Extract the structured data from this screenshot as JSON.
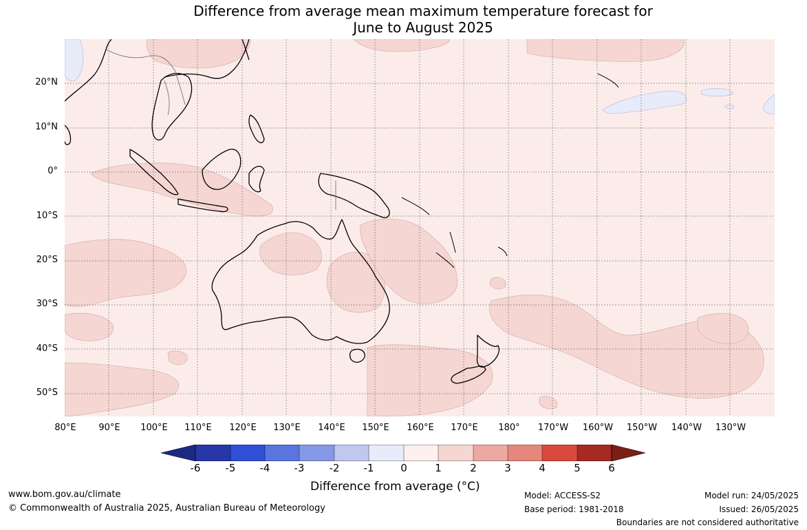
{
  "title_line1": "Difference from average mean maximum temperature forecast for",
  "title_line2": "June to August 2025",
  "lat_ticks": [
    "20°N",
    "10°N",
    "0°",
    "10°S",
    "20°S",
    "30°S",
    "40°S",
    "50°S"
  ],
  "lon_ticks": [
    "80°E",
    "90°E",
    "100°E",
    "110°E",
    "120°E",
    "130°E",
    "140°E",
    "150°E",
    "160°E",
    "170°E",
    "180°",
    "170°W",
    "160°W",
    "150°W",
    "140°W",
    "130°W"
  ],
  "colorbar": {
    "title": "Difference from average (°C)",
    "labels": [
      "-6",
      "-5",
      "-4",
      "-3",
      "-2",
      "-1",
      "0",
      "1",
      "2",
      "3",
      "4",
      "5",
      "6"
    ],
    "colors": [
      "#1c2a84",
      "#2737a8",
      "#2e4fd6",
      "#5a75e0",
      "#8598e6",
      "#c0c8f0",
      "#e8ebfa",
      "#fdf0ee",
      "#f5d6d2",
      "#eba9a1",
      "#e5877d",
      "#d94a3c",
      "#a52a22",
      "#7a1e16"
    ],
    "map_fill_colors": {
      "near_zero": "#fbecea",
      "zero_to_minus_one": "#e8ebfa",
      "one_to_two": "#f5d6d2"
    }
  },
  "footer": {
    "website": "www.bom.gov.au/climate",
    "copyright": "© Commonwealth of Australia 2025, Australian Bureau of Meteorology",
    "model": "Model: ACCESS-S2",
    "base_period": "Base period: 1981-2018",
    "model_run": "Model run: 24/05/2025",
    "issued": "Issued: 26/05/2025",
    "disclaimer": "Boundaries are not considered authoritative"
  }
}
